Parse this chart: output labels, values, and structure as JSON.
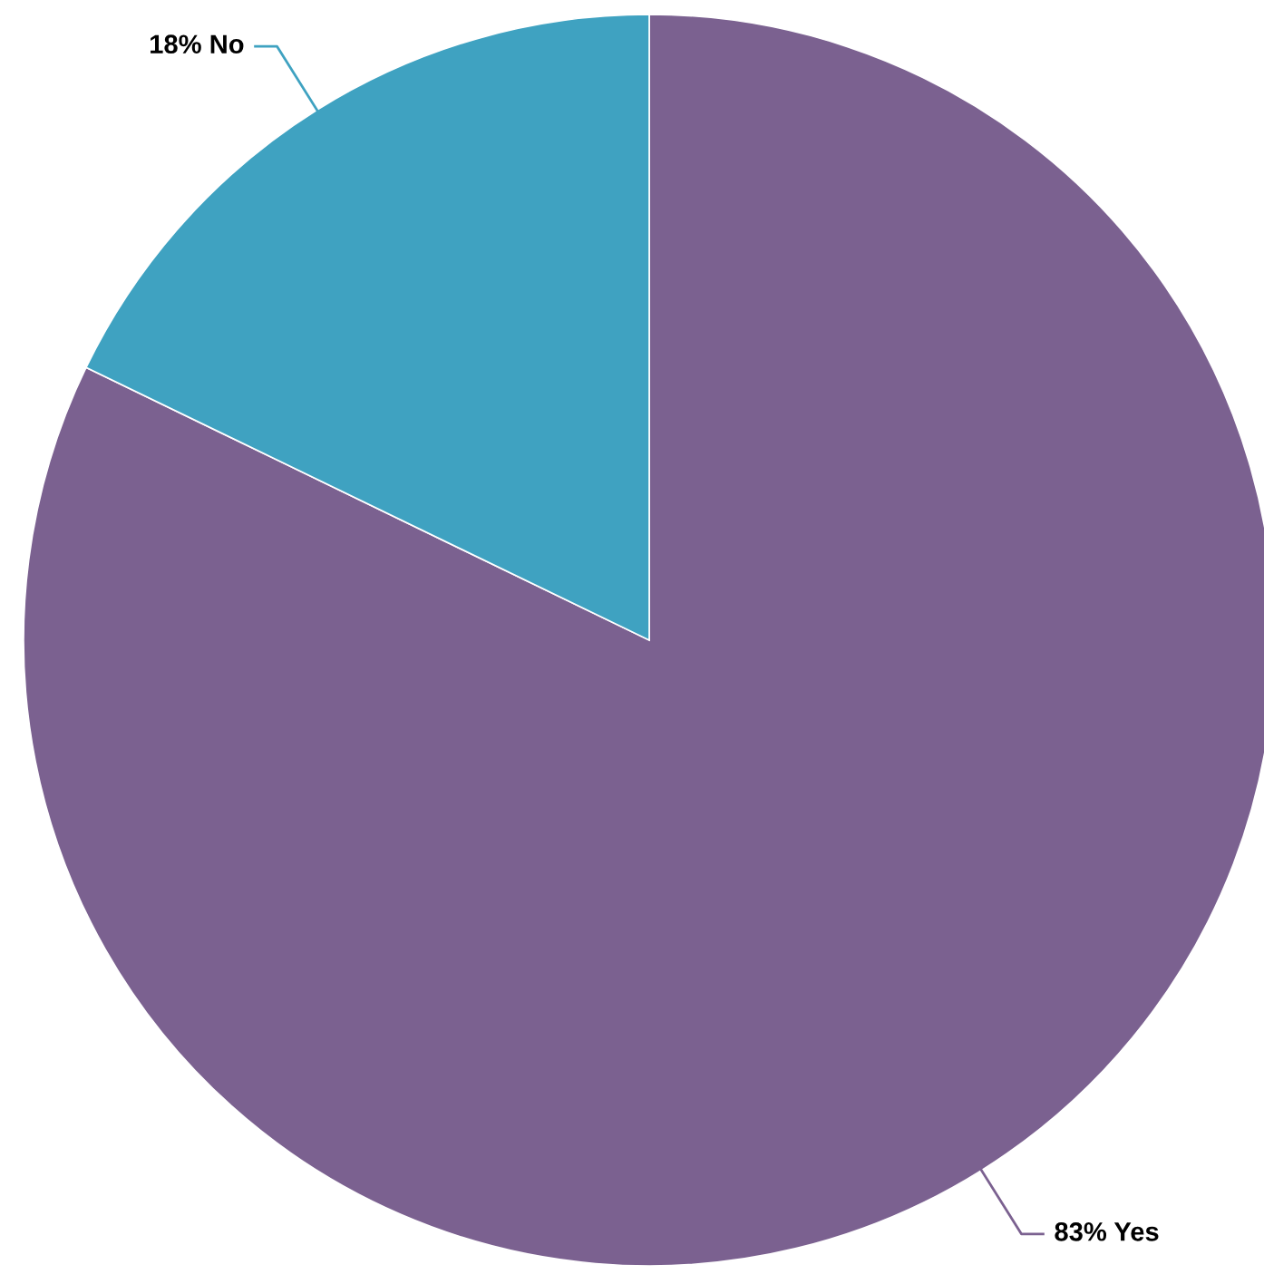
{
  "chart_data": {
    "type": "pie",
    "categories": [
      "Yes",
      "No"
    ],
    "values": [
      83,
      18
    ],
    "value_labels": [
      "83%",
      "18%"
    ],
    "colors": [
      "#7b6190",
      "#3fa2c1"
    ],
    "legend": false
  }
}
